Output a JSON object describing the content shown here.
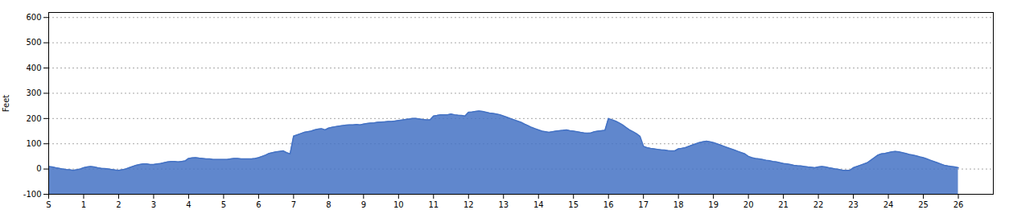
{
  "chart_data": {
    "type": "area",
    "ylabel": "Feet",
    "color": "#4472c4",
    "grid": true,
    "xlim": [
      0,
      27
    ],
    "ylim": [
      -100,
      620
    ],
    "xticks": [
      {
        "value": 0,
        "label": "S"
      },
      1,
      2,
      3,
      4,
      5,
      6,
      7,
      8,
      9,
      10,
      11,
      12,
      13,
      14,
      15,
      16,
      17,
      18,
      19,
      20,
      21,
      22,
      23,
      24,
      25,
      26
    ],
    "yticks": [
      -100,
      0,
      100,
      200,
      300,
      400,
      500,
      600
    ],
    "x": [
      0.0,
      0.1,
      0.2,
      0.3,
      0.4,
      0.5,
      0.6,
      0.7,
      0.8,
      0.9,
      1.0,
      1.1,
      1.2,
      1.3,
      1.4,
      1.5,
      1.6,
      1.7,
      1.8,
      1.9,
      2.0,
      2.1,
      2.2,
      2.3,
      2.4,
      2.5,
      2.6,
      2.7,
      2.8,
      2.9,
      3.0,
      3.1,
      3.2,
      3.3,
      3.4,
      3.5,
      3.6,
      3.7,
      3.8,
      3.9,
      4.0,
      4.1,
      4.2,
      4.3,
      4.4,
      4.5,
      4.6,
      4.7,
      4.8,
      4.9,
      5.0,
      5.1,
      5.2,
      5.3,
      5.4,
      5.5,
      5.6,
      5.7,
      5.8,
      5.9,
      6.0,
      6.1,
      6.2,
      6.3,
      6.4,
      6.5,
      6.6,
      6.7,
      6.8,
      6.9,
      7.0,
      7.1,
      7.2,
      7.3,
      7.4,
      7.5,
      7.6,
      7.7,
      7.8,
      7.9,
      8.0,
      8.1,
      8.2,
      8.3,
      8.4,
      8.5,
      8.6,
      8.7,
      8.8,
      8.9,
      9.0,
      9.1,
      9.2,
      9.3,
      9.4,
      9.5,
      9.6,
      9.7,
      9.8,
      9.9,
      10.0,
      10.1,
      10.2,
      10.3,
      10.4,
      10.5,
      10.6,
      10.7,
      10.8,
      10.9,
      11.0,
      11.1,
      11.2,
      11.3,
      11.4,
      11.5,
      11.6,
      11.7,
      11.8,
      11.9,
      12.0,
      12.1,
      12.2,
      12.3,
      12.4,
      12.5,
      12.6,
      12.7,
      12.8,
      12.9,
      13.0,
      13.1,
      13.2,
      13.3,
      13.4,
      13.5,
      13.6,
      13.7,
      13.8,
      13.9,
      14.0,
      14.1,
      14.2,
      14.3,
      14.4,
      14.5,
      14.6,
      14.7,
      14.8,
      14.9,
      15.0,
      15.1,
      15.2,
      15.3,
      15.4,
      15.5,
      15.6,
      15.7,
      15.8,
      15.9,
      16.0,
      16.1,
      16.2,
      16.3,
      16.4,
      16.5,
      16.6,
      16.7,
      16.8,
      16.9,
      17.0,
      17.1,
      17.2,
      17.3,
      17.4,
      17.5,
      17.6,
      17.7,
      17.8,
      17.9,
      18.0,
      18.1,
      18.2,
      18.3,
      18.4,
      18.5,
      18.6,
      18.7,
      18.8,
      18.9,
      19.0,
      19.1,
      19.2,
      19.3,
      19.4,
      19.5,
      19.6,
      19.7,
      19.8,
      19.9,
      20.0,
      20.1,
      20.2,
      20.3,
      20.4,
      20.5,
      20.6,
      20.7,
      20.8,
      20.9,
      21.0,
      21.1,
      21.2,
      21.3,
      21.4,
      21.5,
      21.6,
      21.7,
      21.8,
      21.9,
      22.0,
      22.1,
      22.2,
      22.3,
      22.4,
      22.5,
      22.6,
      22.7,
      22.8,
      22.9,
      23.0,
      23.1,
      23.2,
      23.3,
      23.4,
      23.5,
      23.6,
      23.7,
      23.8,
      23.9,
      24.0,
      24.1,
      24.2,
      24.3,
      24.4,
      24.5,
      24.6,
      24.7,
      24.8,
      24.9,
      25.0,
      25.1,
      25.2,
      25.3,
      25.4,
      25.5,
      25.6,
      25.7,
      25.8,
      25.9,
      26.0
    ],
    "values": [
      10,
      8,
      5,
      3,
      0,
      -2,
      -3,
      -5,
      -3,
      0,
      5,
      8,
      10,
      8,
      5,
      3,
      2,
      0,
      -2,
      -4,
      -5,
      -3,
      0,
      5,
      10,
      15,
      18,
      20,
      20,
      18,
      18,
      20,
      22,
      25,
      28,
      30,
      30,
      28,
      30,
      32,
      42,
      44,
      45,
      43,
      42,
      40,
      40,
      38,
      38,
      38,
      38,
      38,
      40,
      42,
      42,
      40,
      40,
      40,
      40,
      42,
      45,
      50,
      55,
      62,
      65,
      68,
      70,
      72,
      65,
      60,
      130,
      135,
      140,
      145,
      148,
      150,
      155,
      158,
      160,
      155,
      162,
      165,
      168,
      170,
      172,
      174,
      175,
      175,
      176,
      175,
      178,
      180,
      182,
      183,
      185,
      186,
      187,
      188,
      188,
      190,
      192,
      194,
      196,
      198,
      200,
      200,
      198,
      196,
      195,
      195,
      210,
      212,
      215,
      215,
      215,
      218,
      215,
      213,
      212,
      210,
      225,
      226,
      228,
      230,
      228,
      225,
      222,
      220,
      218,
      215,
      210,
      205,
      200,
      195,
      190,
      185,
      178,
      172,
      165,
      160,
      155,
      150,
      148,
      145,
      148,
      150,
      152,
      153,
      155,
      152,
      150,
      148,
      145,
      143,
      142,
      143,
      148,
      150,
      152,
      153,
      200,
      195,
      190,
      183,
      175,
      165,
      155,
      148,
      140,
      130,
      90,
      85,
      82,
      80,
      78,
      76,
      75,
      73,
      72,
      72,
      80,
      82,
      85,
      90,
      95,
      100,
      105,
      108,
      110,
      108,
      105,
      100,
      95,
      90,
      85,
      80,
      75,
      70,
      65,
      60,
      50,
      45,
      42,
      40,
      38,
      35,
      33,
      30,
      28,
      25,
      22,
      20,
      18,
      15,
      13,
      12,
      10,
      8,
      7,
      5,
      8,
      10,
      8,
      5,
      3,
      0,
      -2,
      -5,
      -5,
      -5,
      5,
      10,
      15,
      20,
      25,
      35,
      45,
      55,
      60,
      62,
      65,
      68,
      70,
      68,
      65,
      62,
      58,
      55,
      52,
      48,
      45,
      40,
      35,
      30,
      25,
      20,
      15,
      12,
      10,
      8,
      5
    ]
  }
}
